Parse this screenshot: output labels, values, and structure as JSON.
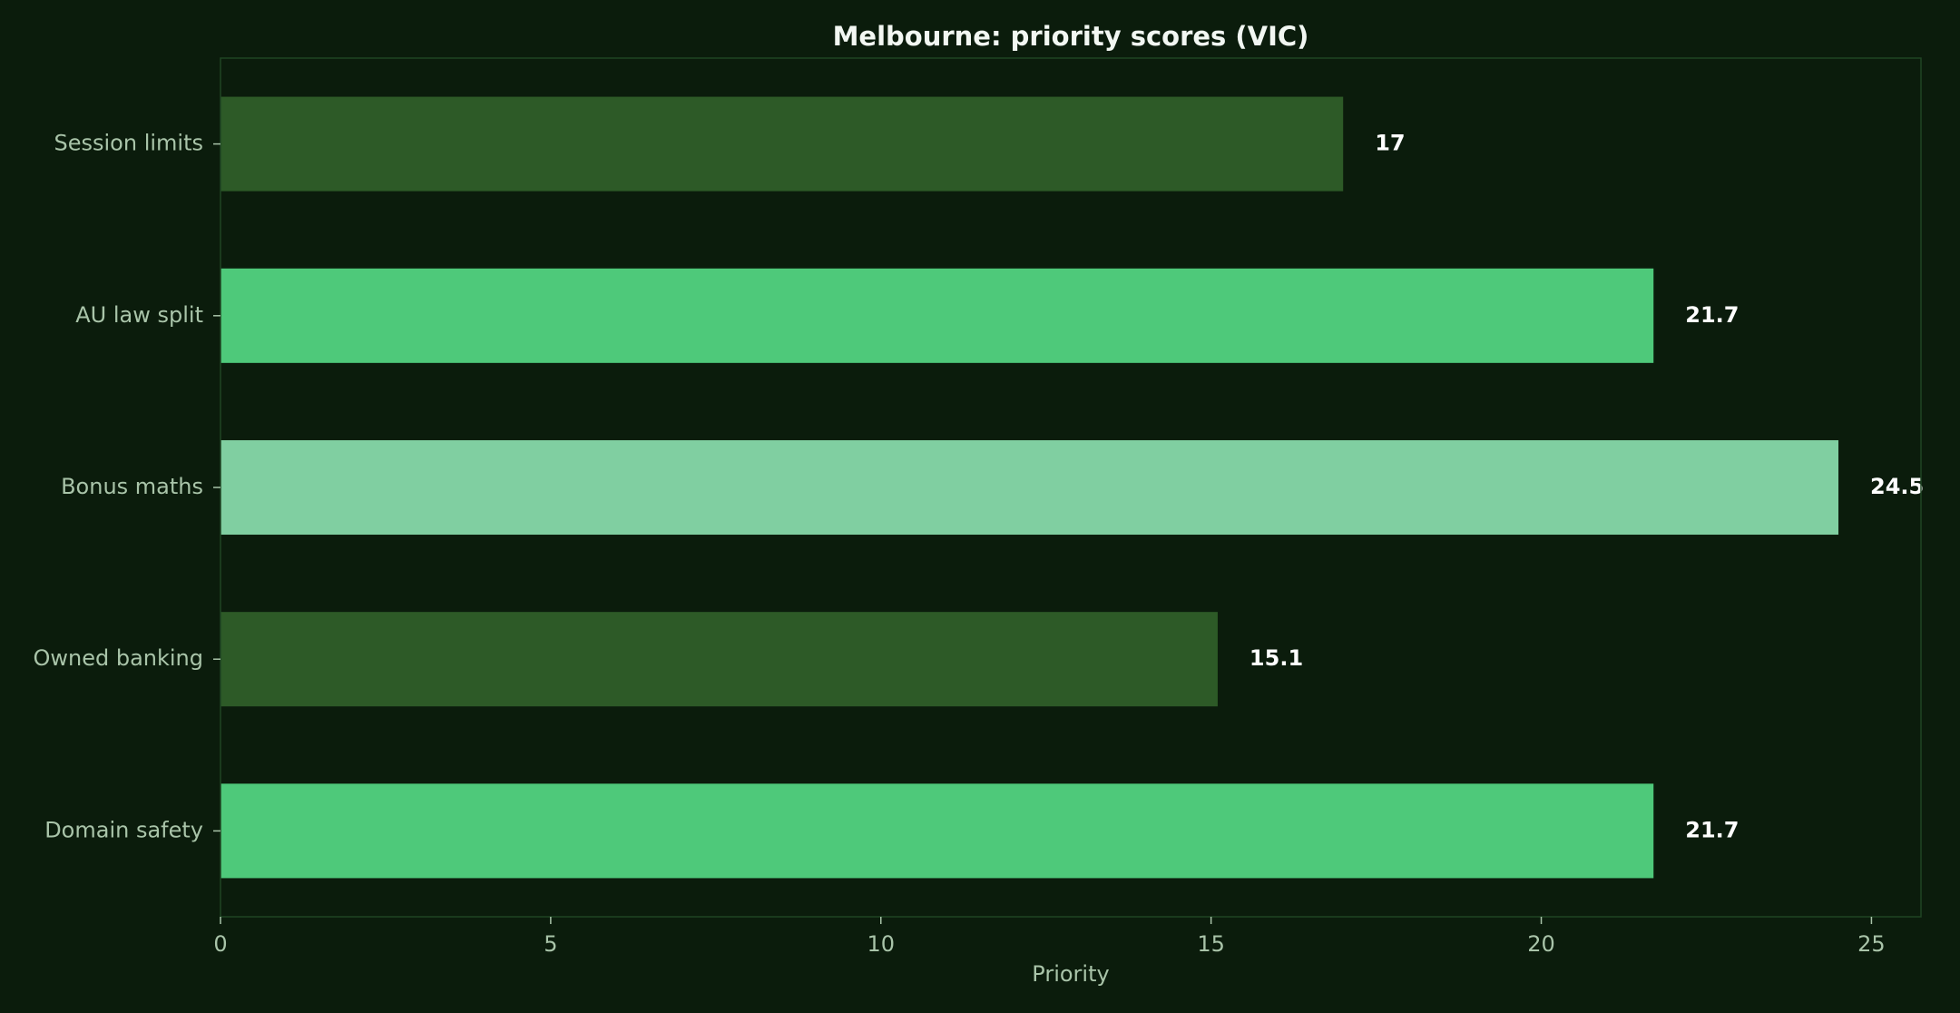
{
  "chart_data": {
    "type": "bar",
    "orientation": "horizontal",
    "title": "Melbourne: priority scores (VIC)",
    "xlabel": "Priority",
    "ylabel": "",
    "xlim": [
      0,
      25.75
    ],
    "xticks": [
      0,
      5,
      10,
      15,
      20,
      25
    ],
    "categories": [
      "Session limits",
      "AU law split",
      "Bonus maths",
      "Owned banking",
      "Domain safety"
    ],
    "values": [
      17,
      21.7,
      24.5,
      15.1,
      21.7
    ],
    "data_labels": [
      "17",
      "21.7",
      "24.5",
      "15.1",
      "21.7"
    ],
    "bar_colors": [
      "#2d5a27",
      "#4ec97a",
      "#80cfa1",
      "#2d5a27",
      "#4ec97a"
    ],
    "grid": false,
    "legend": "none"
  },
  "colors": {
    "background": "#0b1c0c",
    "frame": "#1f4423",
    "tick": "#a9c4a9"
  }
}
